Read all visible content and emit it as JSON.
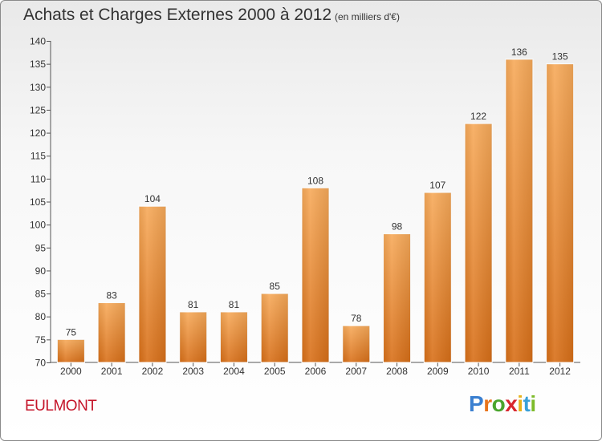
{
  "title": "Achats et Charges Externes 2000 à 2012",
  "subtitle": "(en milliers d'€)",
  "place": "EULMONT",
  "logo": {
    "letters": [
      "P",
      "r",
      "o",
      "x",
      "i",
      "t",
      "i"
    ],
    "colors": [
      "#3a7fd0",
      "#e8731a",
      "#4aa52e",
      "#d8262e",
      "#e8b21a",
      "#3aa0d8",
      "#7dbb2a"
    ]
  },
  "colors": {
    "bar": "#f0963e",
    "bar_dark": "#d86f18",
    "bar_light": "#f7aa5a",
    "title": "#333333",
    "place": "#c5152a"
  },
  "chart_data": {
    "type": "bar",
    "categories": [
      "2000",
      "2001",
      "2002",
      "2003",
      "2004",
      "2005",
      "2006",
      "2007",
      "2008",
      "2009",
      "2010",
      "2011",
      "2012"
    ],
    "values": [
      75,
      83,
      104,
      81,
      81,
      85,
      108,
      78,
      98,
      107,
      122,
      136,
      135
    ],
    "ylim": [
      70,
      140
    ],
    "yticks": [
      70,
      75,
      80,
      85,
      90,
      95,
      100,
      105,
      110,
      115,
      120,
      125,
      130,
      135,
      140
    ],
    "grid": false,
    "data_labels": true
  }
}
